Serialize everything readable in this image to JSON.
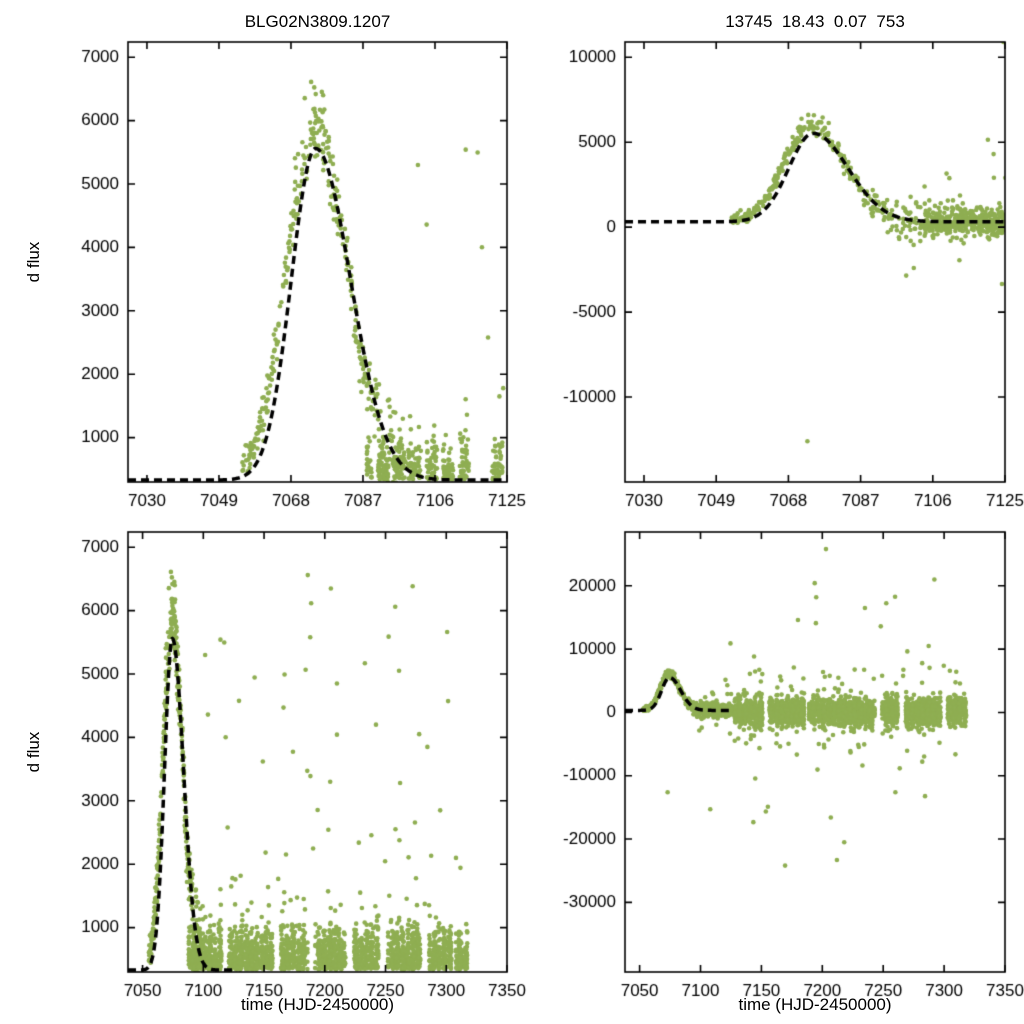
{
  "chart_data": [
    {
      "id": "top-left",
      "type": "scatter",
      "title": "BLG02N3809.1207",
      "xlabel": "",
      "ylabel": "d flux",
      "xlim": [
        7025,
        7125
      ],
      "ylim": [
        300,
        7240
      ],
      "xticks": [
        7030,
        7049,
        7068,
        7087,
        7106,
        7125
      ],
      "yticks": [
        1000,
        2000,
        3000,
        4000,
        5000,
        6000,
        7000
      ],
      "grid": false,
      "legend": false,
      "dataset": "left",
      "curve": "left"
    },
    {
      "id": "top-right",
      "type": "scatter",
      "title": "13745  18.43  0.07  753",
      "xlabel": "",
      "ylabel": "",
      "xlim": [
        7025,
        7125
      ],
      "ylim": [
        -15000,
        10900
      ],
      "xticks": [
        7030,
        7049,
        7068,
        7087,
        7106,
        7125
      ],
      "yticks": [
        -10000,
        -5000,
        0,
        5000,
        10000
      ],
      "grid": false,
      "legend": false,
      "dataset": "right",
      "curve": "right"
    },
    {
      "id": "bottom-left",
      "type": "scatter",
      "title": "",
      "xlabel": "time (HJD-2450000)",
      "ylabel": "d flux",
      "xlim": [
        7038,
        7350
      ],
      "ylim": [
        300,
        7240
      ],
      "xticks": [
        7050,
        7100,
        7150,
        7200,
        7250,
        7300,
        7350
      ],
      "yticks": [
        1000,
        2000,
        3000,
        4000,
        5000,
        6000,
        7000
      ],
      "grid": false,
      "legend": false,
      "dataset": "left",
      "curve": "left"
    },
    {
      "id": "bottom-right",
      "type": "scatter",
      "title": "",
      "xlabel": "time (HJD-2450000)",
      "ylabel": "",
      "xlim": [
        7038,
        7350
      ],
      "ylim": [
        -41000,
        28500
      ],
      "xticks": [
        7050,
        7100,
        7150,
        7200,
        7250,
        7300,
        7350
      ],
      "yticks": [
        -30000,
        -20000,
        -10000,
        0,
        10000,
        20000
      ],
      "grid": false,
      "legend": false,
      "dataset": "right",
      "curve": "right"
    }
  ],
  "curve_models": {
    "left": {
      "t0": 7074.5,
      "baseline": 330,
      "amplitude": 5230,
      "sigma_rise": 6.4,
      "sigma_fall": 9.2,
      "draw_from": 7025,
      "draw_to": 7126
    },
    "right": {
      "t0": 7074.5,
      "baseline": 320,
      "amplitude": 5200,
      "sigma_rise": 6.4,
      "sigma_fall": 9.2,
      "draw_from": 7025,
      "draw_to": 7126
    }
  },
  "scatter_datasets": {
    "left": {
      "seed": 7,
      "model": {
        "t0": 7074,
        "baseline": 380,
        "amplitude": 5500,
        "sigma_rise": 7.2,
        "sigma_fall": 8.8
      },
      "event": {
        "t_start": 7055,
        "t_end": 7100,
        "n": 380,
        "rel_noise": 0.05,
        "abs_noise": 110,
        "noise_grow_after": 7082,
        "noise_grow_rate": 22
      },
      "bands": [
        {
          "t_start": 7088,
          "t_end": 7318,
          "n": 2100,
          "clusters": 54,
          "cluster_step": 4.3,
          "cluster_width": 2.8,
          "mode": "floor",
          "y_floor": 340,
          "y_scale": 330,
          "gaps": [
            [
              7115,
              7121
            ],
            [
              7157,
              7163
            ],
            [
              7186,
              7192
            ],
            [
              7217,
              7224
            ],
            [
              7245,
              7252
            ],
            [
              7279,
              7286
            ],
            [
              7305,
              7308
            ]
          ]
        }
      ],
      "outliers": {
        "n": 48,
        "t_start": 7098,
        "t_end": 7312,
        "y_min": 1350,
        "y_max": 6700,
        "power": 1.7,
        "symmetric": false
      },
      "extra_points": [
        [
          7101.5,
          5300
        ],
        [
          7103.8,
          4360
        ],
        [
          7120,
          2580
        ],
        [
          7124,
          1780
        ],
        [
          7123,
          1650
        ],
        [
          7186,
          6560
        ],
        [
          7205,
          6350
        ],
        [
          7258,
          6060
        ],
        [
          7233,
          5170
        ],
        [
          7210,
          4850
        ],
        [
          7166,
          4470
        ],
        [
          7149,
          3620
        ],
        [
          7262,
          3280
        ],
        [
          7295,
          2850
        ],
        [
          7188,
          5580
        ],
        [
          7228,
          2340
        ],
        [
          7308,
          2100
        ]
      ]
    },
    "right": {
      "seed": 12,
      "model": {
        "t0": 7074,
        "baseline": 330,
        "amplitude": 5600,
        "sigma_rise": 7.2,
        "sigma_fall": 8.8
      },
      "event": {
        "t_start": 7053,
        "t_end": 7104,
        "n": 330,
        "rel_noise": 0.05,
        "abs_noise": 160,
        "noise_grow_after": 7082,
        "noise_grow_rate": 28
      },
      "bands": [
        {
          "t_start": 7104,
          "t_end": 7127,
          "n": 420,
          "clusters": 24,
          "cluster_step": 1.0,
          "cluster_width": 1.0,
          "mode": "center",
          "y_center": 330,
          "y_scale": 420,
          "tail_prob": 0.03,
          "tail_mult": 3.5,
          "gaps": []
        },
        {
          "t_start": 7128,
          "t_end": 7318,
          "n": 2500,
          "clusters": 45,
          "cluster_step": 4.3,
          "cluster_width": 2.8,
          "mode": "center",
          "y_center": 100,
          "y_scale": 1100,
          "tail_prob": 0.05,
          "tail_mult": 3.2,
          "gaps": [
            [
              7152,
              7156
            ],
            [
              7185,
              7189
            ],
            [
              7243,
              7249
            ],
            [
              7262,
              7267
            ],
            [
              7298,
              7302
            ]
          ]
        }
      ],
      "outliers": {
        "n": 26,
        "t_start": 7140,
        "t_end": 7315,
        "y_min": 4500,
        "y_max": 25500,
        "power": 2.2,
        "symmetric": true
      },
      "extra_points": [
        [
          7073,
          -12600
        ],
        [
          7099,
          -2850
        ],
        [
          7101,
          -2400
        ],
        [
          7113,
          -1950
        ],
        [
          7124.6,
          10900
        ],
        [
          7120.5,
          5150
        ],
        [
          7122,
          4300
        ],
        [
          7108,
          -15300
        ],
        [
          7203,
          25800
        ],
        [
          7292,
          21000
        ],
        [
          7212,
          -23300
        ],
        [
          7207,
          -16600
        ],
        [
          7235,
          16500
        ],
        [
          7195,
          18200
        ],
        [
          7180,
          14600
        ],
        [
          7260,
          -12600
        ],
        [
          7248,
          13600
        ],
        [
          7218,
          -20500
        ]
      ]
    }
  },
  "plot_style": {
    "marker_color": "#8fae52",
    "curve_color": "#000000",
    "axis_color": "#000000",
    "background_color": "#ffffff"
  }
}
